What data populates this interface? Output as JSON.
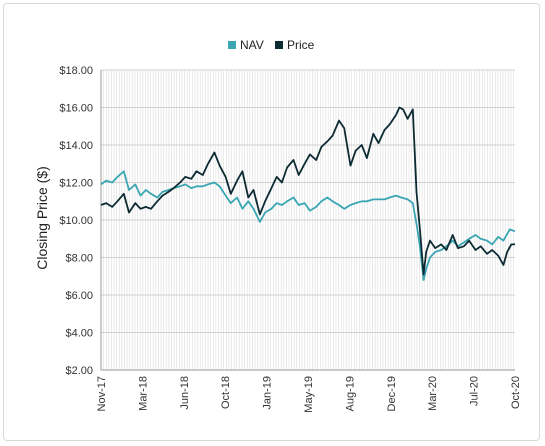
{
  "chart_data": {
    "type": "line",
    "title": "",
    "xlabel": "",
    "ylabel": "Closing Price ($)",
    "ylim": [
      2,
      18
    ],
    "yticks": [
      "$2.00",
      "$4.00",
      "$6.00",
      "$8.00",
      "$10.00",
      "$12.00",
      "$14.00",
      "$16.00",
      "$18.00"
    ],
    "yticks_values": [
      2,
      4,
      6,
      8,
      10,
      12,
      14,
      16,
      18
    ],
    "xticks": [
      "Nov-17",
      "Mar-18",
      "Jun-18",
      "Oct-18",
      "Jan-19",
      "May-19",
      "Aug-19",
      "Dec-19",
      "Mar-20",
      "Jul-20",
      "Oct-20"
    ],
    "x_range": [
      "2017-11-01",
      "2020-11-15"
    ],
    "grid": true,
    "legend_position": "top-center",
    "series": [
      {
        "name": "NAV",
        "color": "#3aa6b3",
        "points": [
          [
            "2017-11-01",
            11.9
          ],
          [
            "2017-11-15",
            12.1
          ],
          [
            "2017-12-01",
            12.0
          ],
          [
            "2017-12-15",
            12.3
          ],
          [
            "2018-01-01",
            12.6
          ],
          [
            "2018-01-15",
            11.6
          ],
          [
            "2018-02-01",
            11.9
          ],
          [
            "2018-02-15",
            11.3
          ],
          [
            "2018-03-01",
            11.6
          ],
          [
            "2018-03-15",
            11.4
          ],
          [
            "2018-04-01",
            11.2
          ],
          [
            "2018-04-15",
            11.5
          ],
          [
            "2018-05-01",
            11.6
          ],
          [
            "2018-05-15",
            11.7
          ],
          [
            "2018-06-01",
            11.8
          ],
          [
            "2018-06-15",
            11.9
          ],
          [
            "2018-07-01",
            11.7
          ],
          [
            "2018-07-15",
            11.8
          ],
          [
            "2018-08-01",
            11.8
          ],
          [
            "2018-08-15",
            11.9
          ],
          [
            "2018-09-01",
            12.0
          ],
          [
            "2018-09-15",
            11.8
          ],
          [
            "2018-10-01",
            11.3
          ],
          [
            "2018-10-15",
            10.9
          ],
          [
            "2018-11-01",
            11.2
          ],
          [
            "2018-11-15",
            10.6
          ],
          [
            "2018-12-01",
            11.0
          ],
          [
            "2018-12-15",
            10.6
          ],
          [
            "2019-01-01",
            9.9
          ],
          [
            "2019-01-15",
            10.4
          ],
          [
            "2019-02-01",
            10.6
          ],
          [
            "2019-02-15",
            10.9
          ],
          [
            "2019-03-01",
            10.8
          ],
          [
            "2019-03-15",
            11.0
          ],
          [
            "2019-04-01",
            11.2
          ],
          [
            "2019-04-15",
            10.8
          ],
          [
            "2019-05-01",
            10.9
          ],
          [
            "2019-05-15",
            10.5
          ],
          [
            "2019-06-01",
            10.7
          ],
          [
            "2019-06-15",
            11.0
          ],
          [
            "2019-07-01",
            11.2
          ],
          [
            "2019-07-15",
            11.0
          ],
          [
            "2019-08-01",
            10.8
          ],
          [
            "2019-08-15",
            10.6
          ],
          [
            "2019-09-01",
            10.8
          ],
          [
            "2019-09-15",
            10.9
          ],
          [
            "2019-10-01",
            11.0
          ],
          [
            "2019-10-15",
            11.0
          ],
          [
            "2019-11-01",
            11.1
          ],
          [
            "2019-11-15",
            11.1
          ],
          [
            "2019-12-01",
            11.1
          ],
          [
            "2019-12-15",
            11.2
          ],
          [
            "2020-01-01",
            11.3
          ],
          [
            "2020-01-15",
            11.2
          ],
          [
            "2020-02-01",
            11.1
          ],
          [
            "2020-02-15",
            10.9
          ],
          [
            "2020-02-25",
            9.8
          ],
          [
            "2020-03-05",
            8.6
          ],
          [
            "2020-03-15",
            6.8
          ],
          [
            "2020-03-22",
            7.4
          ],
          [
            "2020-04-01",
            8.0
          ],
          [
            "2020-04-15",
            8.3
          ],
          [
            "2020-05-01",
            8.4
          ],
          [
            "2020-05-15",
            8.6
          ],
          [
            "2020-06-01",
            8.9
          ],
          [
            "2020-06-15",
            8.6
          ],
          [
            "2020-07-01",
            8.8
          ],
          [
            "2020-07-15",
            9.0
          ],
          [
            "2020-08-01",
            9.2
          ],
          [
            "2020-08-15",
            9.0
          ],
          [
            "2020-09-01",
            8.9
          ],
          [
            "2020-09-15",
            8.7
          ],
          [
            "2020-10-01",
            9.1
          ],
          [
            "2020-10-15",
            8.9
          ],
          [
            "2020-11-01",
            9.5
          ],
          [
            "2020-11-15",
            9.4
          ]
        ]
      },
      {
        "name": "Price",
        "color": "#0d2b33",
        "points": [
          [
            "2017-11-01",
            10.8
          ],
          [
            "2017-11-15",
            10.9
          ],
          [
            "2017-12-01",
            10.7
          ],
          [
            "2017-12-15",
            11.0
          ],
          [
            "2018-01-01",
            11.4
          ],
          [
            "2018-01-15",
            10.4
          ],
          [
            "2018-02-01",
            10.9
          ],
          [
            "2018-02-15",
            10.6
          ],
          [
            "2018-03-01",
            10.7
          ],
          [
            "2018-03-15",
            10.6
          ],
          [
            "2018-04-01",
            11.0
          ],
          [
            "2018-04-15",
            11.3
          ],
          [
            "2018-05-01",
            11.5
          ],
          [
            "2018-05-15",
            11.7
          ],
          [
            "2018-06-01",
            12.0
          ],
          [
            "2018-06-15",
            12.3
          ],
          [
            "2018-07-01",
            12.2
          ],
          [
            "2018-07-15",
            12.6
          ],
          [
            "2018-08-01",
            12.4
          ],
          [
            "2018-08-15",
            13.0
          ],
          [
            "2018-09-01",
            13.6
          ],
          [
            "2018-09-15",
            12.9
          ],
          [
            "2018-10-01",
            12.3
          ],
          [
            "2018-10-15",
            11.4
          ],
          [
            "2018-11-01",
            12.1
          ],
          [
            "2018-11-15",
            12.6
          ],
          [
            "2018-12-01",
            11.2
          ],
          [
            "2018-12-15",
            11.6
          ],
          [
            "2019-01-01",
            10.3
          ],
          [
            "2019-01-15",
            11.0
          ],
          [
            "2019-02-01",
            11.7
          ],
          [
            "2019-02-15",
            12.3
          ],
          [
            "2019-03-01",
            12.0
          ],
          [
            "2019-03-15",
            12.8
          ],
          [
            "2019-04-01",
            13.2
          ],
          [
            "2019-04-15",
            12.4
          ],
          [
            "2019-05-01",
            13.0
          ],
          [
            "2019-05-15",
            13.5
          ],
          [
            "2019-06-01",
            13.2
          ],
          [
            "2019-06-15",
            13.9
          ],
          [
            "2019-07-01",
            14.2
          ],
          [
            "2019-07-15",
            14.5
          ],
          [
            "2019-08-01",
            15.3
          ],
          [
            "2019-08-15",
            14.9
          ],
          [
            "2019-09-01",
            12.9
          ],
          [
            "2019-09-15",
            13.7
          ],
          [
            "2019-10-01",
            14.0
          ],
          [
            "2019-10-15",
            13.3
          ],
          [
            "2019-11-01",
            14.6
          ],
          [
            "2019-11-15",
            14.1
          ],
          [
            "2019-12-01",
            14.8
          ],
          [
            "2019-12-15",
            15.1
          ],
          [
            "2020-01-01",
            15.6
          ],
          [
            "2020-01-10",
            16.0
          ],
          [
            "2020-01-20",
            15.9
          ],
          [
            "2020-02-01",
            15.4
          ],
          [
            "2020-02-15",
            15.9
          ],
          [
            "2020-02-25",
            11.5
          ],
          [
            "2020-03-05",
            9.5
          ],
          [
            "2020-03-15",
            7.1
          ],
          [
            "2020-03-22",
            8.3
          ],
          [
            "2020-04-01",
            8.9
          ],
          [
            "2020-04-15",
            8.5
          ],
          [
            "2020-05-01",
            8.7
          ],
          [
            "2020-05-15",
            8.4
          ],
          [
            "2020-06-01",
            9.2
          ],
          [
            "2020-06-15",
            8.5
          ],
          [
            "2020-07-01",
            8.6
          ],
          [
            "2020-07-15",
            8.9
          ],
          [
            "2020-08-01",
            8.4
          ],
          [
            "2020-08-15",
            8.6
          ],
          [
            "2020-09-01",
            8.2
          ],
          [
            "2020-09-15",
            8.4
          ],
          [
            "2020-10-01",
            8.1
          ],
          [
            "2020-10-15",
            7.6
          ],
          [
            "2020-10-25",
            8.3
          ],
          [
            "2020-11-05",
            8.7
          ],
          [
            "2020-11-15",
            8.7
          ]
        ]
      }
    ]
  }
}
